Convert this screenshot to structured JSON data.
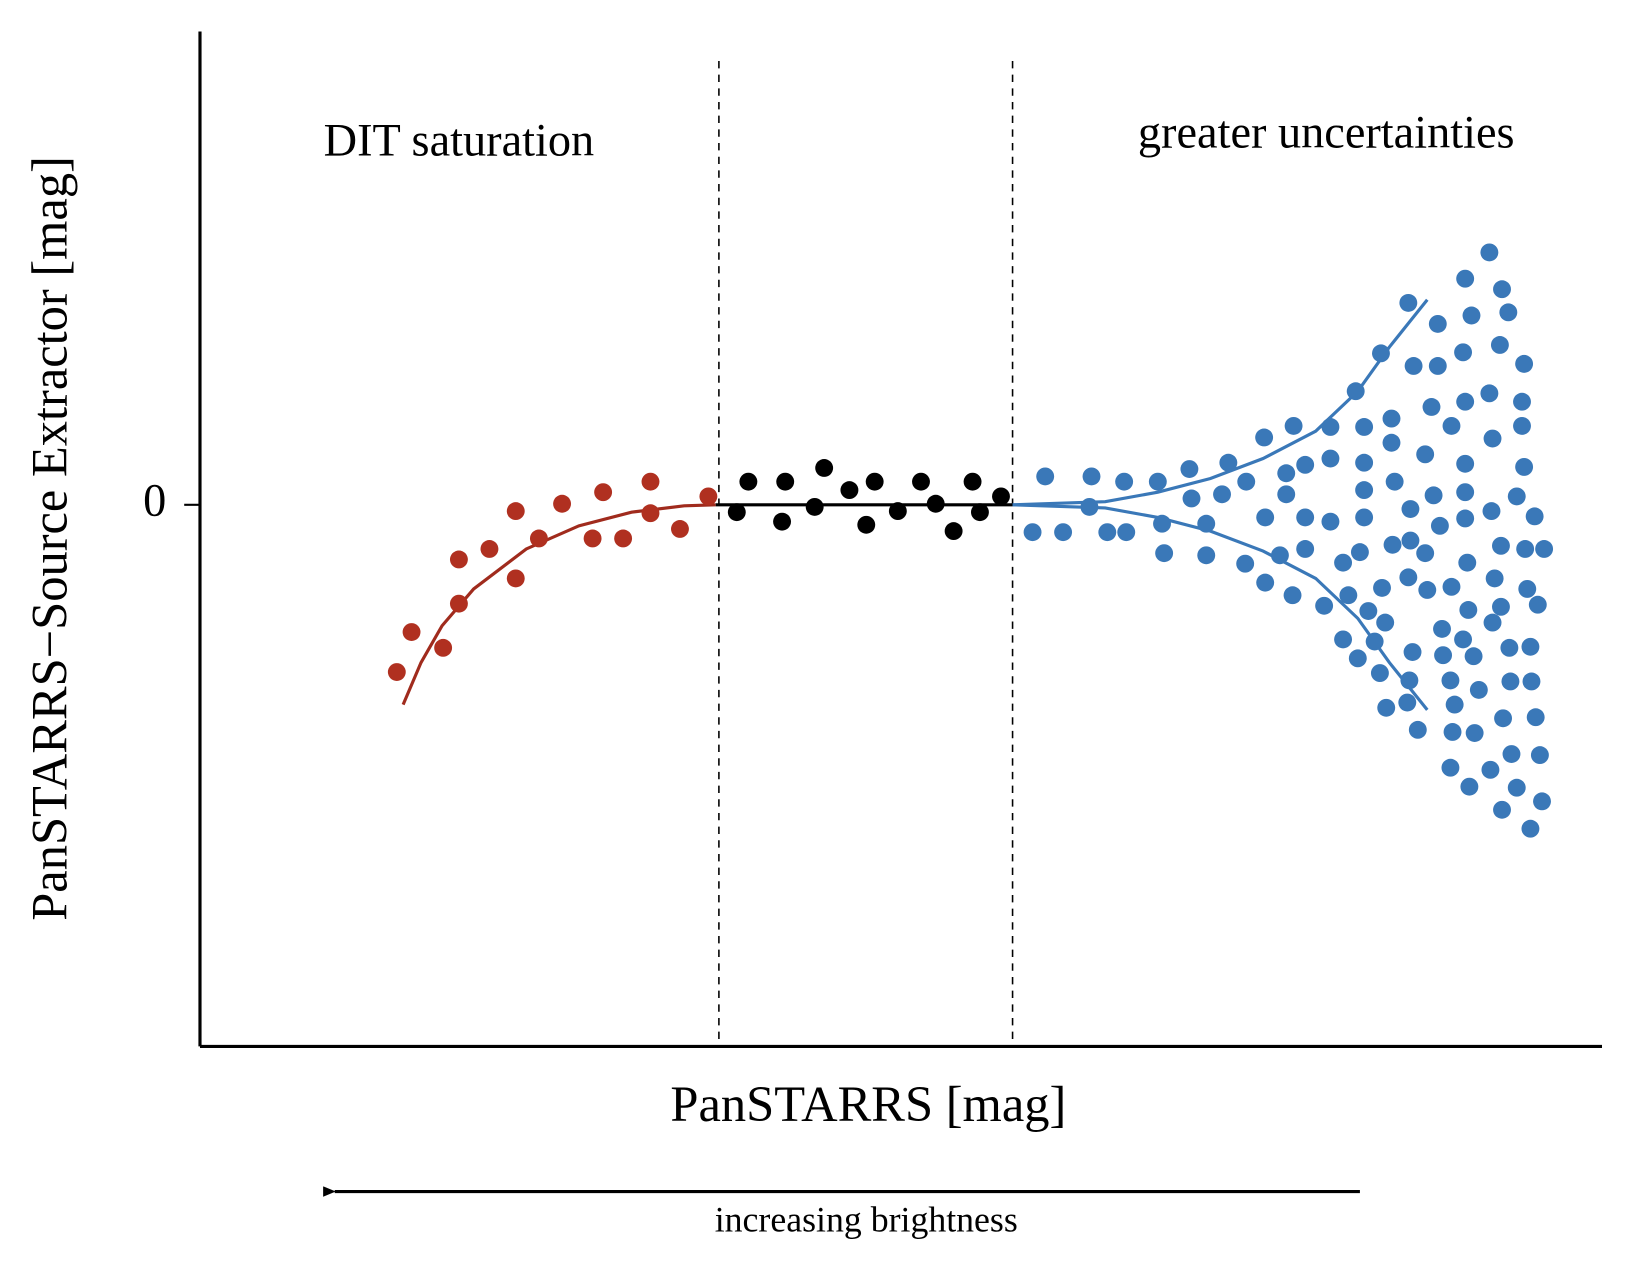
{
  "chart_data": {
    "type": "scatter",
    "xlabel": "PanSTARRS [mag]",
    "ylabel": "PanSTARRS−Source Extractor [mag]",
    "xlim": [
      190,
      1522
    ],
    "ylim": [
      -515,
      450
    ],
    "yticks": [
      0
    ],
    "vlines": [
      683,
      962
    ],
    "annotations": [
      {
        "text": "DIT saturation",
        "color": "#a02b1d"
      },
      {
        "text": "greater uncertainties",
        "color": "#3a78b8"
      },
      {
        "text": "increasing brightness",
        "color": "#000000"
      }
    ],
    "series": [
      {
        "color": "#b03020",
        "x": [
          377,
          391,
          421,
          436,
          436,
          465,
          490,
          490,
          512,
          534,
          563,
          573,
          592,
          618,
          618,
          646,
          673
        ],
        "y": [
          -159,
          -121,
          -136,
          -52,
          -94,
          -42,
          -6,
          -70,
          -32,
          1,
          -32,
          12,
          -32,
          22,
          -8,
          -23,
          8
        ]
      },
      {
        "color": "#000000",
        "x": [
          700,
          711,
          743,
          746,
          774,
          783,
          807,
          823,
          831,
          853,
          875,
          889,
          906,
          924,
          931,
          951
        ],
        "y": [
          -7,
          22,
          -16,
          22,
          -2,
          35,
          14,
          -19,
          22,
          -6,
          22,
          1,
          -25,
          22,
          -7,
          8
        ]
      },
      {
        "color": "#3a78b8",
        "x": [
          981,
          993,
          1010,
          1035,
          1037,
          1052,
          1070,
          1068,
          1100,
          1104,
          1106,
          1130,
          1132,
          1146,
          1146,
          1161,
          1167,
          1184,
          1183,
          1201,
          1202,
          1202,
          1222,
          1222,
          1216,
          1228,
          1240,
          1240,
          1240,
          1229,
          1258,
          1264,
          1264,
          1264,
          1276,
          1276,
          1290,
          1281,
          1296,
          1296,
          1296,
          1296,
          1292,
          1300,
          1306,
          1311,
          1317,
          1288,
          1312,
          1313,
          1322,
          1322,
          1325,
          1323,
          1316,
          1338,
          1338,
          1340,
          1347,
          1342,
          1337,
          1340,
          1339,
          1343,
          1354,
          1354,
          1356,
          1360,
          1366,
          1366,
          1362,
          1368,
          1370,
          1371,
          1378,
          1379,
          1379,
          1378,
          1380,
          1382,
          1392,
          1392,
          1392,
          1392,
          1392,
          1394,
          1395,
          1390,
          1400,
          1401,
          1405,
          1398,
          1390,
          1396,
          1416,
          1415,
          1418,
          1420,
          1418,
          1415,
          1417,
          1425,
          1427,
          1427,
          1426,
          1426,
          1428,
          1436,
          1433,
          1434,
          1435,
          1441,
          1448,
          1448,
          1446,
          1441,
          1446,
          1449,
          1451,
          1454,
          1454,
          1455,
          1458,
          1459,
          1461,
          1463,
          1465,
          1467
        ],
        "y": [
          -26,
          27,
          -26,
          -2,
          27,
          -26,
          -26,
          22,
          22,
          -18,
          -46,
          34,
          6,
          -18,
          -48,
          10,
          40,
          22,
          -56,
          64,
          -12,
          -74,
          30,
          10,
          -48,
          -86,
          38,
          -12,
          -42,
          75,
          -96,
          44,
          74,
          -16,
          -55,
          -128,
          -146,
          -86,
          74,
          40,
          14,
          -12,
          -45,
          -101,
          -130,
          -160,
          -193,
          108,
          144,
          -79,
          82,
          59,
          22,
          -38,
          -112,
          192,
          -69,
          -4,
          -214,
          -140,
          -188,
          -34,
          -167,
          132,
          48,
          -46,
          -81,
          93,
          172,
          132,
          9,
          -20,
          -118,
          -143,
          -167,
          75,
          -78,
          -250,
          -216,
          -190,
          215,
          98,
          39,
          12,
          -13,
          -55,
          -100,
          -128,
          -144,
          -217,
          -176,
          180,
          145,
          -268,
          -252,
          240,
          63,
          -70,
          -112,
          106,
          -6,
          152,
          205,
          -290,
          -39,
          -97,
          -203,
          -237,
          183,
          -136,
          -168,
          -269,
          134,
          36,
          75,
          8,
          98,
          -42,
          -80,
          -308,
          -135,
          -168,
          -11,
          -202,
          -95,
          -238,
          -282,
          -42
        ]
      }
    ],
    "lines": [
      {
        "color": "#a02b1d",
        "x": [
          383,
          400,
          420,
          450,
          500,
          550,
          600,
          650,
          680
        ],
        "y": [
          -190,
          -150,
          -115,
          -80,
          -42,
          -20,
          -7,
          -1,
          0
        ]
      },
      {
        "color": "#000000",
        "x": [
          680,
          962
        ],
        "y": [
          0,
          0
        ]
      },
      {
        "color": "#3a78b8",
        "x": [
          962,
          1050,
          1100,
          1150,
          1200,
          1250,
          1290,
          1320,
          1340,
          1356
        ],
        "y": [
          0,
          3,
          12,
          25,
          44,
          70,
          108,
          150,
          175,
          195
        ]
      },
      {
        "color": "#3a78b8",
        "x": [
          962,
          1050,
          1100,
          1150,
          1200,
          1250,
          1290,
          1320,
          1340,
          1356
        ],
        "y": [
          0,
          -3,
          -12,
          -25,
          -44,
          -70,
          -108,
          -150,
          -175,
          -195
        ]
      }
    ]
  }
}
